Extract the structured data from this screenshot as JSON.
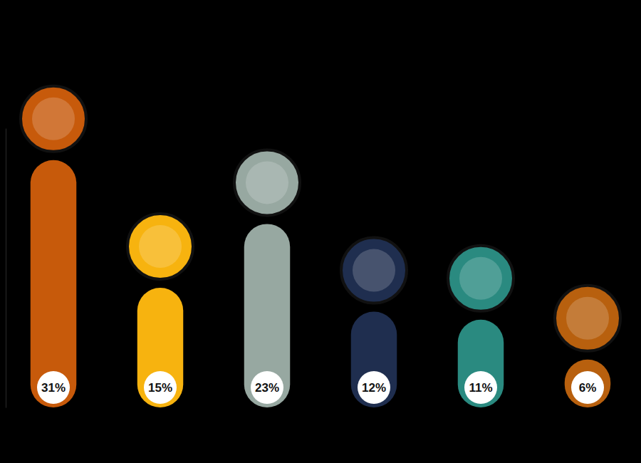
{
  "chart_data": {
    "type": "bar",
    "categories": [
      null,
      null,
      null,
      null,
      null,
      null
    ],
    "values": [
      31,
      15,
      23,
      12,
      11,
      6
    ],
    "value_labels": [
      "31%",
      "15%",
      "23%",
      "12%",
      "11%",
      "6%"
    ],
    "colors": [
      "#c75a0b",
      "#f7b30f",
      "#97a8a1",
      "#1f2e4f",
      "#2a8a80",
      "#b8600e"
    ],
    "ylim": [
      0,
      35
    ],
    "data_labels": true,
    "tick_labels": false,
    "grid": false
  }
}
